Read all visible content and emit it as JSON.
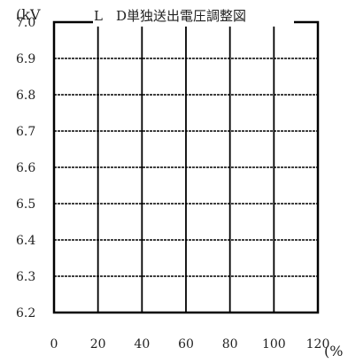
{
  "chart_data": {
    "type": "line",
    "title": "L　D単独送出電圧調整図",
    "ylabel": "(kV",
    "xlabel": "(%",
    "xlim": [
      0,
      120
    ],
    "ylim": [
      6.2,
      7.0
    ],
    "x_ticks": [
      0,
      20,
      40,
      60,
      80,
      100,
      120
    ],
    "x_tick_labels": [
      "0",
      "20",
      "40",
      "60",
      "80",
      "100",
      "120"
    ],
    "y_ticks": [
      7.0,
      6.9,
      6.8,
      6.7,
      6.6,
      6.5,
      6.4,
      6.3,
      6.2
    ],
    "y_tick_labels": [
      "7.0",
      "6.9",
      "6.8",
      "6.7",
      "6.6",
      "6.5",
      "6.4",
      "6.3",
      "6.2"
    ],
    "grid": true,
    "series": [],
    "colors": {
      "frame": "#000000",
      "grid": "#000000",
      "text": "#222222"
    }
  }
}
